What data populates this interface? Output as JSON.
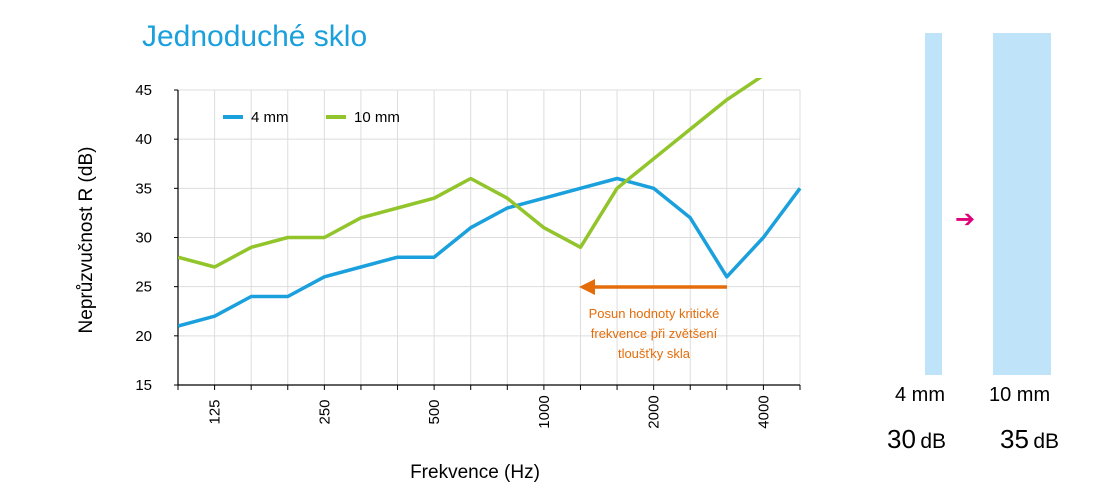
{
  "title": "Jednoduché sklo",
  "chart_data": {
    "type": "line",
    "x": [
      "",
      "125",
      "",
      "",
      "250",
      "",
      "",
      "500",
      "",
      "",
      "1000",
      "",
      "",
      "2000",
      "",
      "",
      "4000",
      ""
    ],
    "xlabel": "Frekvence (Hz)",
    "ylabel": "Neprůzvučnost R (dB)",
    "ylim": [
      15,
      45
    ],
    "yticks": [
      "15",
      "20",
      "25",
      "30",
      "35",
      "40",
      "45"
    ],
    "grid": true,
    "legend_position": "top-left",
    "series": [
      {
        "name": "4 mm",
        "color": "#1aa0dc",
        "values": [
          21,
          22,
          24,
          24,
          26,
          27,
          28,
          28,
          31,
          33,
          34,
          35,
          36,
          35,
          32,
          26,
          30,
          35
        ]
      },
      {
        "name": "10 mm",
        "color": "#92c42b",
        "values": [
          28,
          27,
          29,
          30,
          30,
          32,
          33,
          34,
          36,
          34,
          31,
          29,
          35,
          38,
          41,
          44,
          46.5,
          null
        ]
      }
    ],
    "annotation": {
      "lines": [
        "Posun hodnoty kritické",
        "frekvence při zvětšení",
        "tloušťky skla"
      ],
      "color": "#e46c0a"
    }
  },
  "panes": {
    "thin_label": "4 mm",
    "thick_label": "10 mm",
    "thin_db_value": "30",
    "thick_db_value": "35",
    "db_unit": "dB",
    "arrow_color": "#e0007a"
  }
}
